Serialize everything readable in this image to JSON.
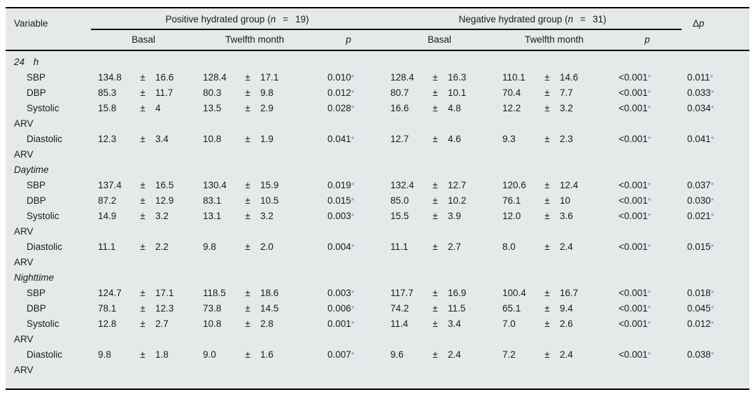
{
  "colors": {
    "table_bg": "#e5e9ea",
    "star": "#3fa8e8",
    "text": "#1a1a1a",
    "rule": "#000000"
  },
  "plus_minus": "±",
  "header": {
    "variable": "Variable",
    "groups": [
      {
        "name": "Positive hydrated group (",
        "nvar": "n",
        "eq": "=",
        "nval": "19)"
      },
      {
        "name": "Negative hydrated group (",
        "nvar": "n",
        "eq": "=",
        "nval": "31)"
      }
    ],
    "delta": "Δ",
    "delta_p_ital": "p",
    "subheaders": {
      "basal": "Basal",
      "twelfth": "Twelfth month",
      "p": "p"
    }
  },
  "sections": [
    {
      "label": "24 h",
      "rows": [
        {
          "label": "SBP",
          "values": [
            "134.8",
            "16.6",
            "128.4",
            "17.1",
            "0.010*",
            "128.4",
            "16.3",
            "110.1",
            "14.6",
            "<0.001*",
            "0.011*"
          ]
        },
        {
          "label": "DBP",
          "values": [
            "85.3",
            "11.7",
            "80.3",
            "9.8",
            "0.012*",
            "80.7",
            "10.1",
            "70.4",
            "7.7",
            "<0.001*",
            "0.033*"
          ]
        },
        {
          "label": "Systolic ARV",
          "values": [
            "15.8",
            "4",
            "13.5",
            "2.9",
            "0.028*",
            "16.6",
            "4.8",
            "12.2",
            "3.2",
            "<0.001*",
            "0.034*"
          ]
        },
        {
          "label": "Diastolic ARV",
          "values": [
            "12.3",
            "3.4",
            "10.8",
            "1.9",
            "0.041*",
            "12.7",
            "4.6",
            "9.3",
            "2.3",
            "<0.001*",
            "0.041*"
          ]
        }
      ]
    },
    {
      "label": "Daytime",
      "rows": [
        {
          "label": "SBP",
          "values": [
            "137.4",
            "16.5",
            "130.4",
            "15.9",
            "0.019*",
            "132.4",
            "12.7",
            "120.6",
            "12.4",
            "<0.001*",
            "0.037*"
          ]
        },
        {
          "label": "DBP",
          "values": [
            "87.2",
            "12.9",
            "83.1",
            "10.5",
            "0.015*",
            "85.0",
            "10.2",
            "76.1",
            "10",
            "<0.001*",
            "0.030*"
          ]
        },
        {
          "label": "Systolic ARV",
          "values": [
            "14.9",
            "3.2",
            "13.1",
            "3.2",
            "0.003*",
            "15.5",
            "3.9",
            "12.0",
            "3.6",
            "<0.001*",
            "0.021*"
          ]
        },
        {
          "label": "Diastolic ARV",
          "values": [
            "11.1",
            "2.2",
            "9.8",
            "2.0",
            "0.004*",
            "11.1",
            "2.7",
            "8.0",
            "2.4",
            "<0.001*",
            "0.015*"
          ]
        }
      ]
    },
    {
      "label": "Nighttime",
      "rows": [
        {
          "label": "SBP",
          "values": [
            "124.7",
            "17.1",
            "118.5",
            "18.6",
            "0.003*",
            "117.7",
            "16.9",
            "100.4",
            "16.7",
            "<0.001*",
            "0.018*"
          ]
        },
        {
          "label": "DBP",
          "values": [
            "78.1",
            "12.3",
            "73.8",
            "14.5",
            "0.006*",
            "74.2",
            "11.5",
            "65.1",
            "9.4",
            "<0.001*",
            "0.045*"
          ]
        },
        {
          "label": "Systolic ARV",
          "values": [
            "12.8",
            "2.7",
            "10.8",
            "2.8",
            "0.001*",
            "11.4",
            "3.4",
            "7.0",
            "2.6",
            "<0.001*",
            "0.012*"
          ]
        },
        {
          "label": "Diastolic ARV",
          "values": [
            "9.8",
            "1.8",
            "9.0",
            "1.6",
            "0.007*",
            "9.6",
            "2.4",
            "7.2",
            "2.4",
            "<0.001*",
            "0.038*"
          ]
        }
      ]
    }
  ]
}
